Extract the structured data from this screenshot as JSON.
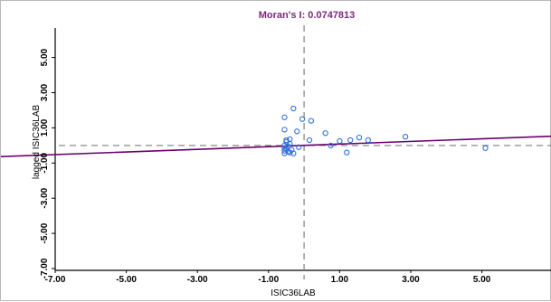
{
  "chart_data": {
    "type": "scatter",
    "title": "Moran's I: 0.0747813",
    "xlabel": "ISIC36LAB",
    "ylabel": "lagged ISIC36LAB",
    "xlim": [
      -7.0,
      7.0
    ],
    "ylim": [
      -7.0,
      7.0
    ],
    "x_ticks": [
      "-7.00",
      "-5.00",
      "-3.00",
      "-1.00",
      "1.00",
      "3.00",
      "5.00"
    ],
    "x_tick_values": [
      -7,
      -5,
      -3,
      -1,
      1,
      3,
      5
    ],
    "y_ticks": [
      "-7.00",
      "-5.00",
      "-3.00",
      "-1.00",
      "1.00",
      "3.00",
      "5.00"
    ],
    "y_tick_values": [
      -7,
      -5,
      -3,
      -1,
      1,
      3,
      5
    ],
    "grid": false,
    "reference_lines": {
      "vertical_x": 0.0,
      "horizontal_y": 0.0,
      "style": "dashed"
    },
    "regression": {
      "slope": 0.0747813,
      "intercept": 0.0
    },
    "points": [
      {
        "x": -0.55,
        "y": 0.0
      },
      {
        "x": -0.55,
        "y": -0.15
      },
      {
        "x": -0.55,
        "y": -0.3
      },
      {
        "x": -0.55,
        "y": -0.45
      },
      {
        "x": -0.5,
        "y": 0.2
      },
      {
        "x": -0.5,
        "y": -0.2
      },
      {
        "x": -0.45,
        "y": -0.05
      },
      {
        "x": -0.45,
        "y": -0.35
      },
      {
        "x": -0.4,
        "y": 0.1
      },
      {
        "x": -0.4,
        "y": -0.4
      },
      {
        "x": -0.35,
        "y": -0.25
      },
      {
        "x": -0.3,
        "y": -0.45
      },
      {
        "x": -0.55,
        "y": 1.6
      },
      {
        "x": -0.55,
        "y": 0.9
      },
      {
        "x": -0.5,
        "y": 0.3
      },
      {
        "x": -0.4,
        "y": 0.35
      },
      {
        "x": -0.3,
        "y": 2.1
      },
      {
        "x": -0.2,
        "y": 0.8
      },
      {
        "x": -0.15,
        "y": -0.1
      },
      {
        "x": -0.05,
        "y": 1.5
      },
      {
        "x": 0.2,
        "y": 1.4
      },
      {
        "x": 0.15,
        "y": 0.3
      },
      {
        "x": 0.6,
        "y": 0.7
      },
      {
        "x": 0.75,
        "y": 0.0
      },
      {
        "x": 1.0,
        "y": 0.25
      },
      {
        "x": 1.2,
        "y": -0.4
      },
      {
        "x": 1.3,
        "y": 0.3
      },
      {
        "x": 1.55,
        "y": 0.45
      },
      {
        "x": 1.8,
        "y": 0.3
      },
      {
        "x": 2.85,
        "y": 0.5
      },
      {
        "x": 5.1,
        "y": -0.15
      }
    ],
    "colors": {
      "points": "#2f6fe0",
      "regression": "#6b006b",
      "reference": "#8a8a8a",
      "title": "#7a2a7a"
    }
  }
}
